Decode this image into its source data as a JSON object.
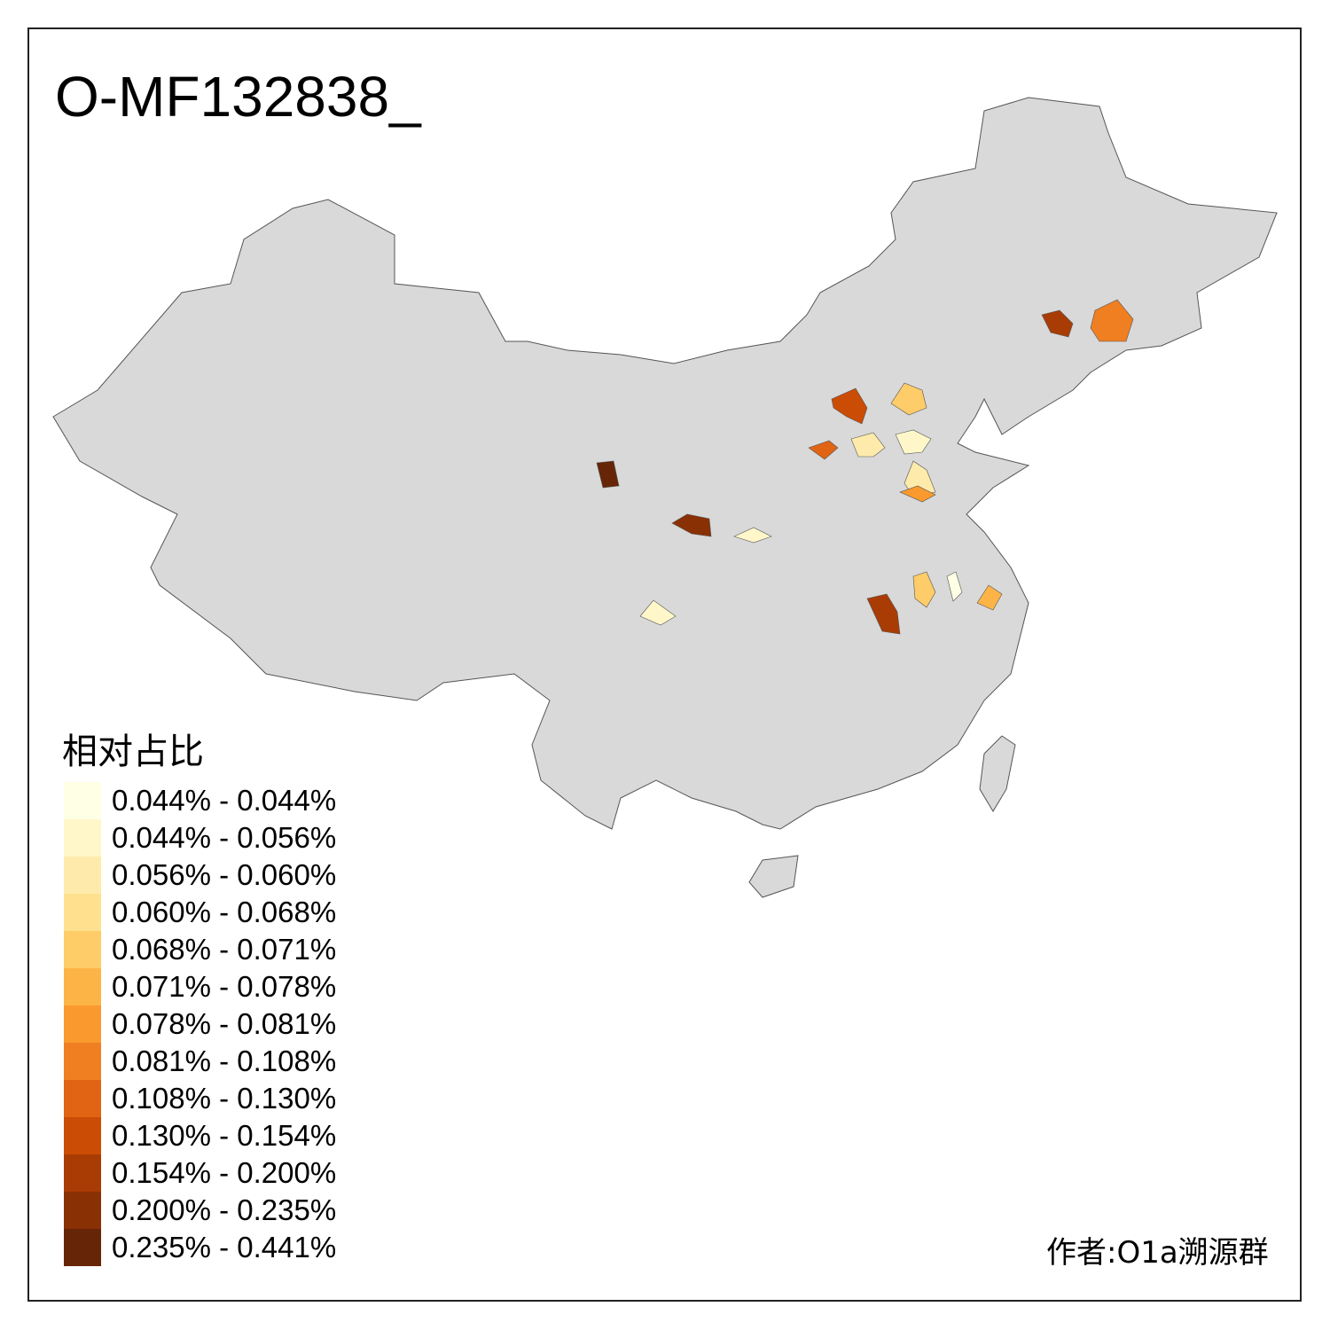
{
  "title": "O-MF132838_",
  "legend": {
    "title": "相对占比",
    "items": [
      {
        "label": "0.044% - 0.044%",
        "color": "#FFFFE5"
      },
      {
        "label": "0.044% - 0.056%",
        "color": "#FFF7C9"
      },
      {
        "label": "0.056% - 0.060%",
        "color": "#FEEBAB"
      },
      {
        "label": "0.060% - 0.068%",
        "color": "#FEE08E"
      },
      {
        "label": "0.068% - 0.071%",
        "color": "#FECC68"
      },
      {
        "label": "0.071% - 0.078%",
        "color": "#FDB446"
      },
      {
        "label": "0.078% - 0.081%",
        "color": "#FA992E"
      },
      {
        "label": "0.081% - 0.108%",
        "color": "#F07F22"
      },
      {
        "label": "0.108% - 0.130%",
        "color": "#E06414"
      },
      {
        "label": "0.130% - 0.154%",
        "color": "#CB4C05"
      },
      {
        "label": "0.154% - 0.200%",
        "color": "#A93C04"
      },
      {
        "label": "0.200% - 0.235%",
        "color": "#8A3005"
      },
      {
        "label": "0.235% - 0.441%",
        "color": "#662506"
      }
    ]
  },
  "map": {
    "base_color": "#D9D9D9",
    "border_color": "#555555",
    "highlighted_regions": [
      {
        "bin": 11,
        "color": "#A93C04"
      },
      {
        "bin": 8,
        "color": "#F07F22"
      },
      {
        "bin": 10,
        "color": "#CB4C05"
      },
      {
        "bin": 5,
        "color": "#FECC68"
      },
      {
        "bin": 9,
        "color": "#E06414"
      },
      {
        "bin": 3,
        "color": "#FEEBAB"
      },
      {
        "bin": 2,
        "color": "#FFF7C9"
      },
      {
        "bin": 3,
        "color": "#FEEBAB"
      },
      {
        "bin": 7,
        "color": "#FA992E"
      },
      {
        "bin": 13,
        "color": "#662506"
      },
      {
        "bin": 12,
        "color": "#8A3005"
      },
      {
        "bin": 2,
        "color": "#FFF7C9"
      },
      {
        "bin": 2,
        "color": "#FFF7C9"
      },
      {
        "bin": 5,
        "color": "#FECC68"
      },
      {
        "bin": 1,
        "color": "#FFFFE5"
      },
      {
        "bin": 6,
        "color": "#FDB446"
      },
      {
        "bin": 11,
        "color": "#A93C04"
      }
    ]
  },
  "author": "作者:O1a溯源群"
}
